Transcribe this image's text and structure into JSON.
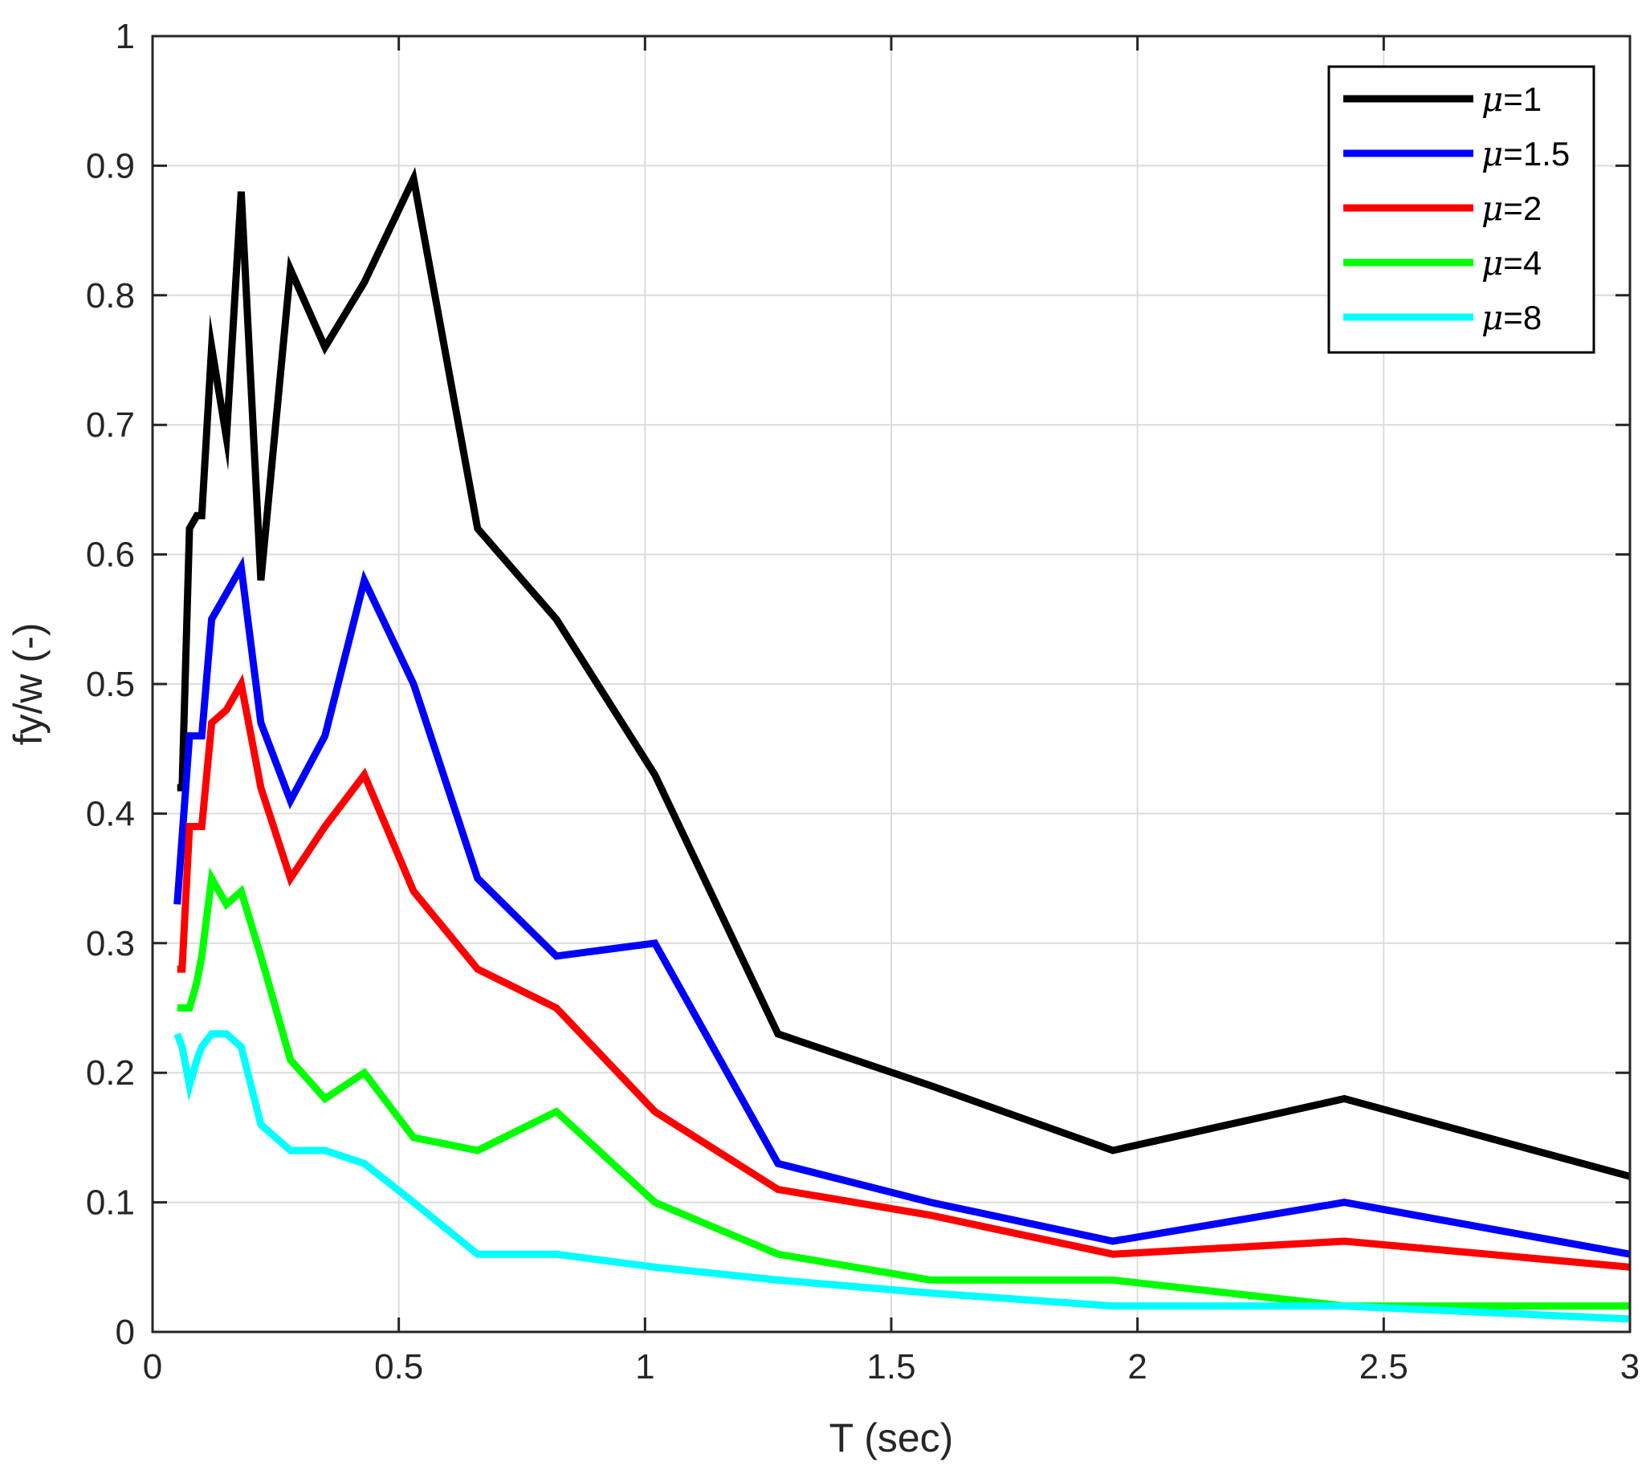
{
  "chart_data": {
    "type": "line",
    "title": "",
    "xlabel": "T (sec)",
    "ylabel": "fy/w (-)",
    "xlim": [
      0,
      3
    ],
    "ylim": [
      0,
      1
    ],
    "grid": true,
    "legend_position": "top-right",
    "x_ticks": [
      "0",
      "0.5",
      "1",
      "1.5",
      "2",
      "2.5",
      "3"
    ],
    "y_ticks": [
      "0",
      "0.1",
      "0.2",
      "0.3",
      "0.4",
      "0.5",
      "0.6",
      "0.7",
      "0.8",
      "0.9",
      "1"
    ],
    "series": [
      {
        "name": "μ=1",
        "legend_symbol": "μ",
        "legend_value": "=1",
        "color": "#000000",
        "x": [
          0.05,
          0.06,
          0.075,
          0.09,
          0.1,
          0.12,
          0.15,
          0.18,
          0.22,
          0.28,
          0.35,
          0.43,
          0.53,
          0.66,
          0.82,
          1.02,
          1.27,
          1.58,
          1.95,
          2.42,
          3.0
        ],
        "y": [
          0.42,
          0.42,
          0.62,
          0.63,
          0.63,
          0.76,
          0.69,
          0.88,
          0.58,
          0.82,
          0.76,
          0.81,
          0.89,
          0.62,
          0.55,
          0.43,
          0.23,
          0.19,
          0.14,
          0.18,
          0.12
        ]
      },
      {
        "name": "μ=1.5",
        "legend_symbol": "μ",
        "legend_value": "=1.5",
        "color": "#0000ff",
        "x": [
          0.05,
          0.075,
          0.09,
          0.1,
          0.12,
          0.15,
          0.18,
          0.22,
          0.28,
          0.35,
          0.43,
          0.53,
          0.66,
          0.82,
          1.02,
          1.27,
          1.58,
          1.95,
          2.42,
          3.0
        ],
        "y": [
          0.33,
          0.46,
          0.46,
          0.46,
          0.55,
          0.57,
          0.59,
          0.47,
          0.41,
          0.46,
          0.58,
          0.5,
          0.35,
          0.29,
          0.3,
          0.13,
          0.1,
          0.07,
          0.1,
          0.06
        ]
      },
      {
        "name": "μ=2",
        "legend_symbol": "μ",
        "legend_value": "=2",
        "color": "#ff0000",
        "x": [
          0.05,
          0.06,
          0.075,
          0.09,
          0.1,
          0.12,
          0.15,
          0.18,
          0.22,
          0.28,
          0.35,
          0.43,
          0.53,
          0.66,
          0.82,
          1.02,
          1.27,
          1.58,
          1.95,
          2.42,
          3.0
        ],
        "y": [
          0.28,
          0.28,
          0.39,
          0.39,
          0.39,
          0.47,
          0.48,
          0.5,
          0.42,
          0.35,
          0.39,
          0.43,
          0.34,
          0.28,
          0.25,
          0.17,
          0.11,
          0.09,
          0.06,
          0.07,
          0.05
        ]
      },
      {
        "name": "μ=4",
        "legend_symbol": "μ",
        "legend_value": "=4",
        "color": "#00ff00",
        "x": [
          0.05,
          0.06,
          0.075,
          0.09,
          0.1,
          0.12,
          0.15,
          0.18,
          0.22,
          0.28,
          0.35,
          0.43,
          0.53,
          0.66,
          0.82,
          1.02,
          1.27,
          1.58,
          1.95,
          2.42,
          3.0
        ],
        "y": [
          0.25,
          0.25,
          0.25,
          0.27,
          0.29,
          0.35,
          0.33,
          0.34,
          0.29,
          0.21,
          0.18,
          0.2,
          0.15,
          0.14,
          0.17,
          0.1,
          0.06,
          0.04,
          0.04,
          0.02,
          0.02
        ]
      },
      {
        "name": "μ=8",
        "legend_symbol": "μ",
        "legend_value": "=8",
        "color": "#00ffff",
        "x": [
          0.05,
          0.06,
          0.075,
          0.09,
          0.1,
          0.12,
          0.15,
          0.18,
          0.22,
          0.28,
          0.35,
          0.43,
          0.53,
          0.66,
          0.82,
          1.02,
          1.27,
          1.58,
          1.95,
          2.42,
          3.0
        ],
        "y": [
          0.23,
          0.22,
          0.19,
          0.21,
          0.22,
          0.23,
          0.23,
          0.22,
          0.16,
          0.14,
          0.14,
          0.13,
          0.1,
          0.06,
          0.06,
          0.05,
          0.04,
          0.03,
          0.02,
          0.02,
          0.01
        ]
      }
    ]
  }
}
